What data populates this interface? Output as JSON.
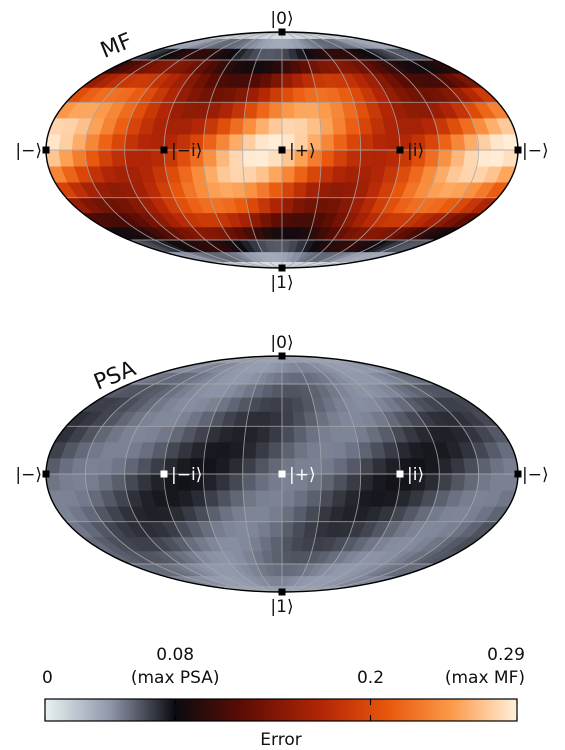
{
  "chart_data": [
    {
      "type": "heatmap",
      "projection": "mollweide",
      "title": "MF",
      "state_labels": [
        {
          "text": "|0⟩",
          "lon": 0,
          "lat": 90,
          "marker_color": "#000000"
        },
        {
          "text": "|1⟩",
          "lon": 0,
          "lat": -90,
          "marker_color": "#000000"
        },
        {
          "text": "|+⟩",
          "lon": 0,
          "lat": 0,
          "marker_color": "#000000"
        },
        {
          "text": "|−i⟩",
          "lon": -90,
          "lat": 0,
          "marker_color": "#000000"
        },
        {
          "text": "|i⟩",
          "lon": 90,
          "lat": 0,
          "marker_color": "#000000"
        },
        {
          "text": "|−⟩",
          "lon": -180,
          "lat": 0,
          "marker_color": "#000000"
        },
        {
          "text": "|−⟩",
          "lon": 180,
          "lat": 0,
          "marker_color": "#000000"
        }
      ],
      "error_max": 0.29,
      "pattern": "diagonal bright bands, high error across the equator, low near poles",
      "grid": true
    },
    {
      "type": "heatmap",
      "projection": "mollweide",
      "title": "PSA",
      "state_labels": [
        {
          "text": "|0⟩",
          "lon": 0,
          "lat": 90,
          "marker_color": "#000000"
        },
        {
          "text": "|1⟩",
          "lon": 0,
          "lat": -90,
          "marker_color": "#000000"
        },
        {
          "text": "|+⟩",
          "lon": 0,
          "lat": 0,
          "marker_color": "#ffffff"
        },
        {
          "text": "|−i⟩",
          "lon": -90,
          "lat": 0,
          "marker_color": "#ffffff"
        },
        {
          "text": "|i⟩",
          "lon": 90,
          "lat": 0,
          "marker_color": "#ffffff"
        },
        {
          "text": "|−⟩",
          "lon": -180,
          "lat": 0,
          "marker_color": "#000000"
        },
        {
          "text": "|−⟩",
          "lon": 180,
          "lat": 0,
          "marker_color": "#000000"
        }
      ],
      "error_max": 0.08,
      "pattern": "dark diagonal bands on blue-grey background",
      "grid": true
    }
  ],
  "colorbar": {
    "label": "Error",
    "range": [
      0,
      0.29
    ],
    "ticks": [
      {
        "value": 0,
        "line1": "0",
        "line2": ""
      },
      {
        "value": 0.08,
        "line1": "0.08",
        "line2": "(max PSA)"
      },
      {
        "value": 0.2,
        "line1": "0.2",
        "line2": ""
      },
      {
        "value": 0.29,
        "line1": "0.29",
        "line2": "(max MF)"
      }
    ],
    "colormap": [
      {
        "v": 0.0,
        "c": "#e8f2f2"
      },
      {
        "v": 0.04,
        "c": "#8f97ab"
      },
      {
        "v": 0.08,
        "c": "#0b0b10"
      },
      {
        "v": 0.12,
        "c": "#5a0c04"
      },
      {
        "v": 0.17,
        "c": "#b32606"
      },
      {
        "v": 0.21,
        "c": "#e8560b"
      },
      {
        "v": 0.25,
        "c": "#fc9a4a"
      },
      {
        "v": 0.29,
        "c": "#fff0dc"
      }
    ]
  }
}
